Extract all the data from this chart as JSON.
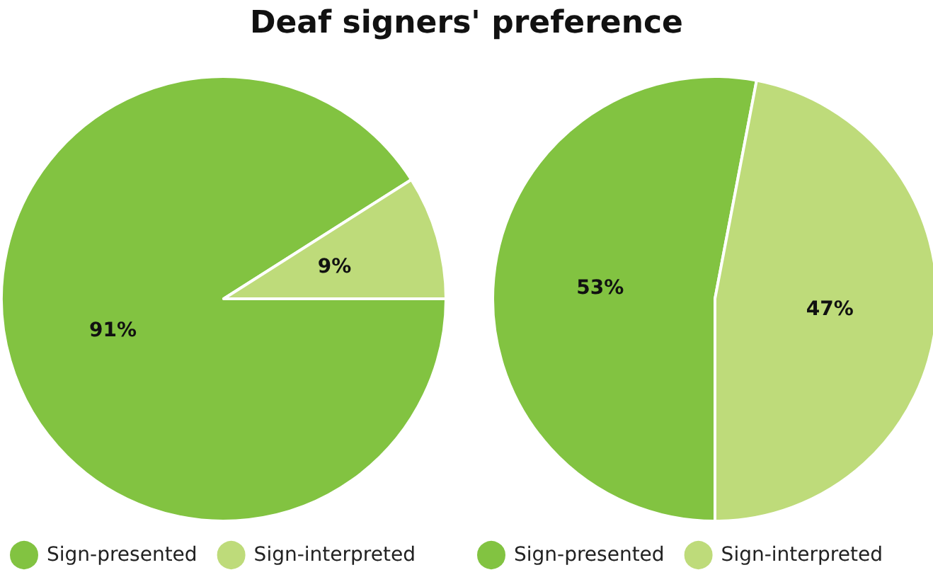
{
  "chart_data": [
    {
      "type": "pie",
      "title": "Deaf signers' preference",
      "categories": [
        "Sign-presented",
        "Sign-interpreted"
      ],
      "values": [
        91,
        9
      ],
      "value_labels": [
        "91%",
        "9%"
      ],
      "colors": [
        "#82c341",
        "#bedb7a"
      ],
      "legend": "bottom"
    },
    {
      "type": "pie",
      "categories": [
        "Sign-presented",
        "Sign-interpreted"
      ],
      "values": [
        53,
        47
      ],
      "value_labels": [
        "53%",
        "47%"
      ],
      "colors": [
        "#82c341",
        "#bedb7a"
      ],
      "legend": "bottom"
    }
  ]
}
